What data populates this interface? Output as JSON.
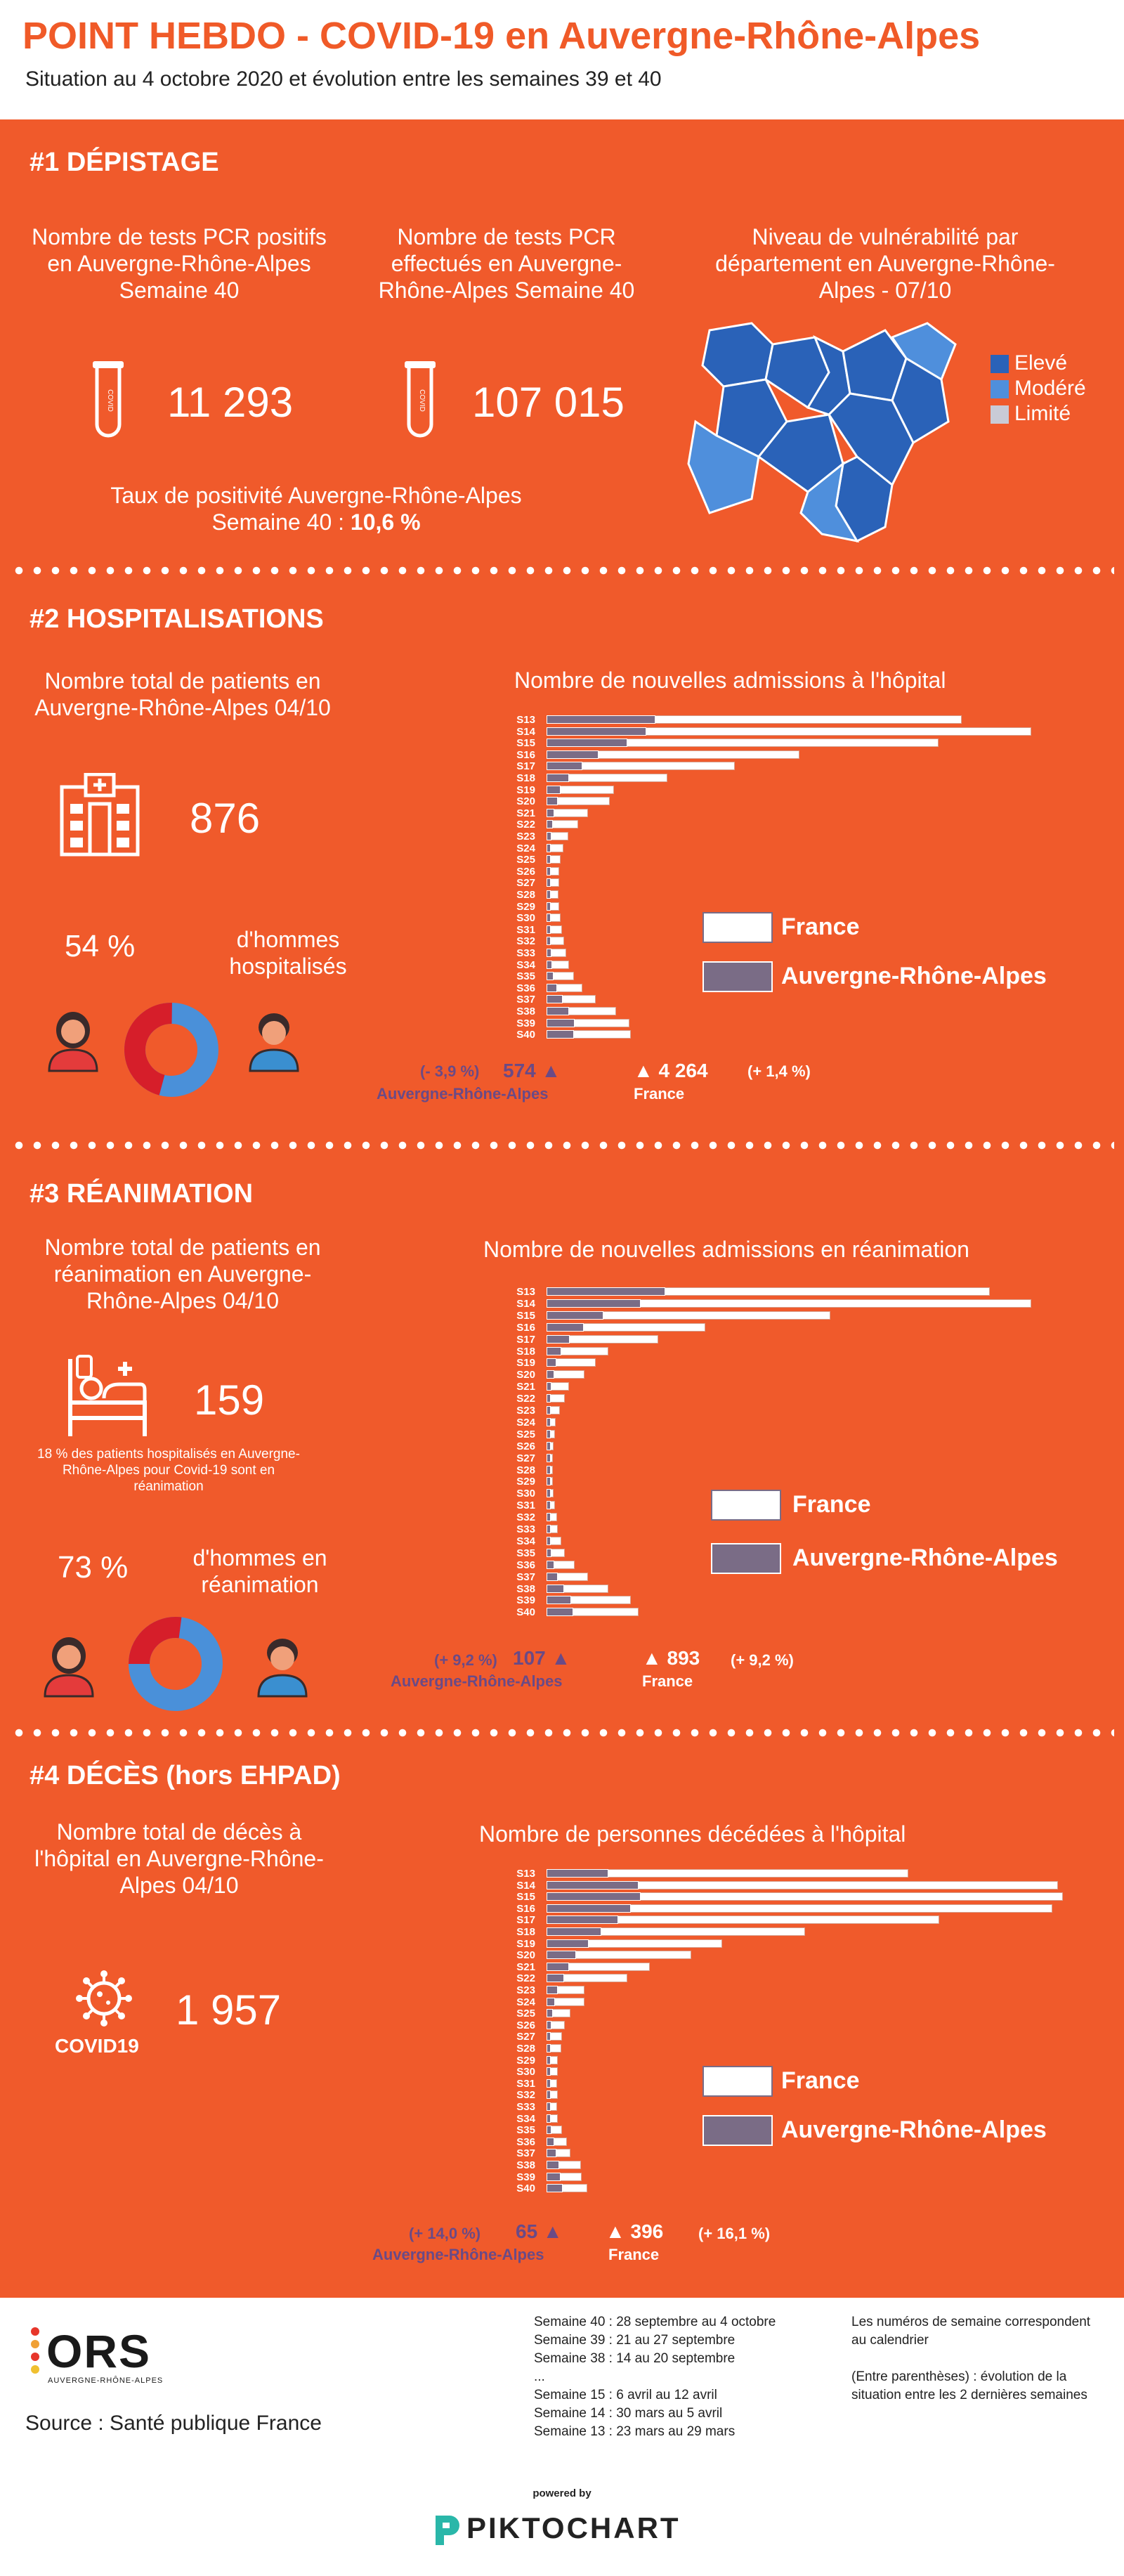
{
  "header": {
    "title": "POINT HEBDO - COVID-19 en Auvergne-Rhône-Alpes",
    "subtitle": "Situation au 4 octobre 2020 et évolution entre les semaines 39 et 40"
  },
  "depistage": {
    "title": "#1 DÉPISTAGE",
    "positive_label": "Nombre de tests PCR positifs en Auvergne-Rhône-Alpes Semaine 40",
    "positive_value": "11 293",
    "done_label": "Nombre de tests PCR effectués en Auvergne-Rhône-Alpes Semaine 40",
    "done_value": "107 015",
    "tube_text": "COVID",
    "rate_label": "Taux de positivité Auvergne-Rhône-Alpes Semaine 40 :",
    "rate_value": "10,6 %",
    "map_title": "Niveau de vulnérabilité par département en Auvergne-Rhône-Alpes - 07/10",
    "legend": [
      {
        "label": "Elevé",
        "color": "#2a62b8"
      },
      {
        "label": "Modéré",
        "color": "#4f8fdc"
      },
      {
        "label": "Limité",
        "color": "#c9cbd6"
      }
    ]
  },
  "hospit": {
    "title": "#2 HOSPITALISATIONS",
    "total_label": "Nombre total de patients en Auvergne-Rhône-Alpes 04/10",
    "total_value": "876",
    "men_pct": "54 %",
    "men_label": "d'hommes hospitalisés",
    "chart_title": "Nombre de nouvelles admissions à l'hôpital",
    "legend_france": "France",
    "legend_ara": "Auvergne-Rhône-Alpes",
    "ara_evol": "(- 3,9 %)",
    "ara_value": "574",
    "ara_name": "Auvergne-Rhône-Alpes",
    "fr_value": "4 264",
    "fr_name": "France",
    "fr_evol": "(+ 1,4 %)"
  },
  "rea": {
    "title": "#3 RÉANIMATION",
    "total_label": "Nombre total de patients en réanimation en Auvergne-Rhône-Alpes 04/10",
    "total_value": "159",
    "note": "18 % des patients hospitalisés en Auvergne-Rhône-Alpes pour Covid-19 sont en réanimation",
    "men_pct": "73 %",
    "men_label": "d'hommes en réanimation",
    "chart_title": "Nombre de nouvelles admissions en réanimation",
    "legend_france": "France",
    "legend_ara": "Auvergne-Rhône-Alpes",
    "ara_evol": "(+ 9,2 %)",
    "ara_value": "107",
    "ara_name": "Auvergne-Rhône-Alpes",
    "fr_value": "893",
    "fr_name": "France",
    "fr_evol": "(+ 9,2 %)"
  },
  "deces": {
    "title": "#4 DÉCÈS (hors EHPAD)",
    "total_label": "Nombre total de décès à l'hôpital en Auvergne-Rhône-Alpes 04/10",
    "total_value": "1 957",
    "covid_label": "COVID19",
    "chart_title": "Nombre de personnes décédées à l'hôpital",
    "legend_france": "France",
    "legend_ara": "Auvergne-Rhône-Alpes",
    "ara_evol": "(+ 14,0 %)",
    "ara_value": "65",
    "ara_name": "Auvergne-Rhône-Alpes",
    "fr_value": "396",
    "fr_name": "France",
    "fr_evol": "(+ 16,1 %)"
  },
  "footer": {
    "logo": "ORS",
    "logo_sub": "AUVERGNE-RHÔNE-ALPES",
    "source": "Source : Santé publique France",
    "weeks": [
      "Semaine 40 : 28 septembre au 4 octobre",
      "Semaine 39 : 21 au 27 septembre",
      "Semaine 38 : 14 au 20 septembre",
      "...",
      "Semaine 15 : 6 avril au 12 avril",
      "Semaine 14 : 30 mars au 5 avril",
      "Semaine 13 : 23 mars au 29 mars"
    ],
    "note1": "Les numéros de semaine correspondent au calendrier",
    "note2": "(Entre parenthèses) : évolution de la situation entre les 2 dernières semaines",
    "powered": "powered by",
    "brand": "PIKTOCHART"
  },
  "chart_data": [
    {
      "type": "bar",
      "title": "Nombre de nouvelles admissions à l'hôpital",
      "categories": [
        "S13",
        "S14",
        "S15",
        "S16",
        "S17",
        "S18",
        "S19",
        "S20",
        "S21",
        "S22",
        "S23",
        "S24",
        "S25",
        "S26",
        "S27",
        "S28",
        "S29",
        "S30",
        "S31",
        "S32",
        "S33",
        "S34",
        "S35",
        "S36",
        "S37",
        "S38",
        "S39",
        "S40"
      ],
      "series": [
        {
          "name": "France",
          "values": [
            21000,
            24500,
            19800,
            12800,
            9500,
            6100,
            3400,
            3200,
            2100,
            1600,
            1100,
            850,
            700,
            650,
            630,
            620,
            640,
            700,
            780,
            900,
            1000,
            1150,
            1400,
            1800,
            2500,
            3500,
            4200,
            4264
          ]
        },
        {
          "name": "Auvergne-Rhône-Alpes",
          "values": [
            2300,
            2100,
            1700,
            1100,
            750,
            480,
            290,
            230,
            170,
            130,
            110,
            85,
            70,
            65,
            60,
            60,
            65,
            70,
            80,
            90,
            100,
            115,
            150,
            220,
            340,
            470,
            597,
            574
          ]
        }
      ]
    },
    {
      "type": "bar",
      "title": "Nombre de nouvelles admissions en réanimation",
      "categories": [
        "S13",
        "S14",
        "S15",
        "S16",
        "S17",
        "S18",
        "S19",
        "S20",
        "S21",
        "S22",
        "S23",
        "S24",
        "S25",
        "S26",
        "S27",
        "S28",
        "S29",
        "S30",
        "S31",
        "S32",
        "S33",
        "S34",
        "S35",
        "S36",
        "S37",
        "S38",
        "S39",
        "S40"
      ],
      "series": [
        {
          "name": "France",
          "values": [
            4300,
            4700,
            2750,
            1540,
            1080,
            600,
            480,
            370,
            220,
            180,
            130,
            90,
            80,
            70,
            60,
            60,
            60,
            70,
            80,
            100,
            110,
            140,
            180,
            270,
            400,
            600,
            818,
            893
          ]
        },
        {
          "name": "Auvergne-Rhône-Alpes",
          "values": [
            480,
            380,
            230,
            150,
            95,
            60,
            40,
            30,
            20,
            16,
            12,
            9,
            8,
            7,
            6,
            6,
            6,
            7,
            8,
            10,
            11,
            14,
            20,
            30,
            45,
            70,
            98,
            107
          ]
        }
      ]
    },
    {
      "type": "bar",
      "title": "Nombre de personnes décédées à l'hôpital",
      "categories": [
        "S13",
        "S14",
        "S15",
        "S16",
        "S17",
        "S18",
        "S19",
        "S20",
        "S21",
        "S22",
        "S23",
        "S24",
        "S25",
        "S26",
        "S27",
        "S28",
        "S29",
        "S30",
        "S31",
        "S32",
        "S33",
        "S34",
        "S35",
        "S36",
        "S37",
        "S38",
        "S39",
        "S40"
      ],
      "series": [
        {
          "name": "France",
          "values": [
            3500,
            4950,
            5000,
            4900,
            3800,
            2500,
            1700,
            1400,
            1000,
            780,
            370,
            370,
            230,
            180,
            150,
            140,
            110,
            110,
            100,
            110,
            100,
            110,
            150,
            200,
            230,
            330,
            341,
            396
          ]
        },
        {
          "name": "Auvergne-Rhône-Alpes",
          "values": [
            250,
            370,
            380,
            340,
            290,
            220,
            170,
            120,
            90,
            70,
            45,
            35,
            25,
            20,
            18,
            15,
            12,
            12,
            10,
            12,
            12,
            14,
            20,
            30,
            40,
            50,
            57,
            65
          ]
        }
      ]
    }
  ]
}
